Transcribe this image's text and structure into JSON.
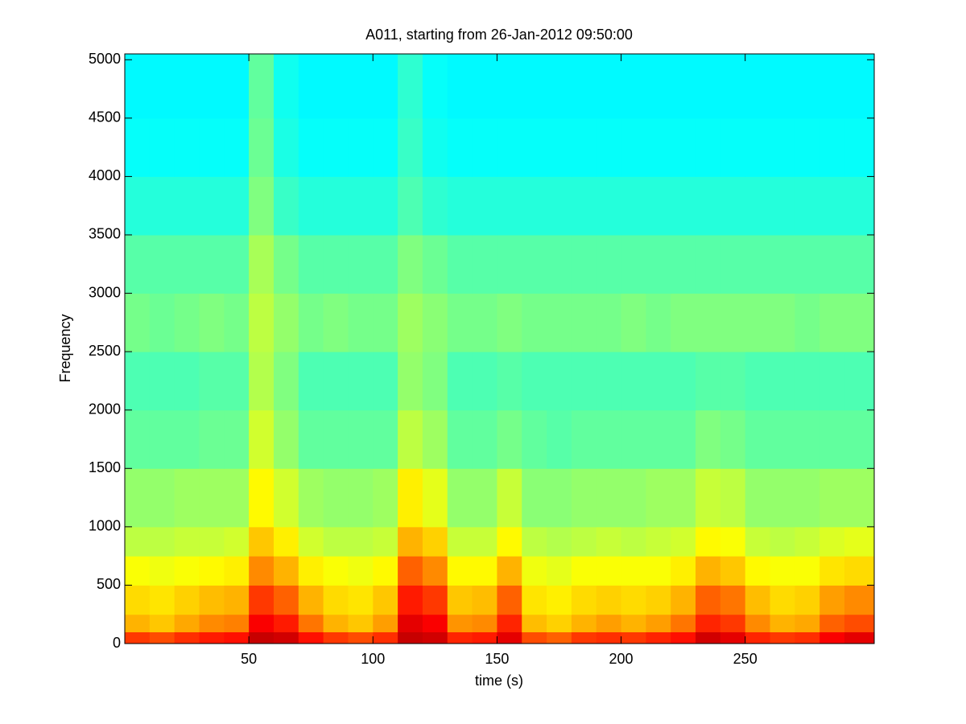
{
  "chart_data": {
    "type": "heatmap",
    "title": "A011, starting from 26-Jan-2012 09:50:00",
    "x_label": "time (s)",
    "y_label": "Frequency",
    "colormap": "jet",
    "zlim": [
      0,
      1
    ],
    "xlim": [
      0,
      302
    ],
    "ylim": [
      0,
      5050
    ],
    "xticks": [
      50,
      100,
      150,
      200,
      250
    ],
    "yticks": [
      0,
      500,
      1000,
      1500,
      2000,
      2500,
      3000,
      3500,
      4000,
      4500,
      5000
    ],
    "xbins": [
      0,
      10,
      20,
      30,
      40,
      50,
      60,
      70,
      80,
      90,
      100,
      110,
      120,
      130,
      140,
      150,
      160,
      170,
      180,
      190,
      200,
      210,
      220,
      230,
      240,
      250,
      260,
      270,
      280,
      290,
      302
    ],
    "ybins": [
      0,
      100,
      250,
      500,
      750,
      1000,
      1500,
      2000,
      2500,
      3000,
      3500,
      4000,
      4500,
      5050
    ],
    "z": [
      [
        0.82,
        0.8,
        0.83,
        0.85,
        0.86,
        0.93,
        0.92,
        0.86,
        0.82,
        0.8,
        0.83,
        0.93,
        0.92,
        0.84,
        0.85,
        0.9,
        0.8,
        0.78,
        0.82,
        0.83,
        0.82,
        0.84,
        0.86,
        0.92,
        0.9,
        0.84,
        0.82,
        0.83,
        0.88,
        0.9
      ],
      [
        0.7,
        0.68,
        0.71,
        0.74,
        0.75,
        0.88,
        0.85,
        0.76,
        0.7,
        0.68,
        0.72,
        0.9,
        0.88,
        0.73,
        0.74,
        0.84,
        0.69,
        0.67,
        0.7,
        0.72,
        0.7,
        0.72,
        0.76,
        0.84,
        0.82,
        0.74,
        0.7,
        0.71,
        0.78,
        0.8
      ],
      [
        0.66,
        0.65,
        0.67,
        0.69,
        0.7,
        0.82,
        0.78,
        0.7,
        0.66,
        0.65,
        0.68,
        0.85,
        0.82,
        0.68,
        0.69,
        0.78,
        0.65,
        0.64,
        0.66,
        0.67,
        0.66,
        0.67,
        0.7,
        0.78,
        0.76,
        0.69,
        0.66,
        0.67,
        0.72,
        0.74
      ],
      [
        0.62,
        0.61,
        0.62,
        0.63,
        0.64,
        0.74,
        0.7,
        0.64,
        0.62,
        0.61,
        0.63,
        0.78,
        0.74,
        0.63,
        0.63,
        0.7,
        0.61,
        0.6,
        0.62,
        0.62,
        0.62,
        0.62,
        0.64,
        0.7,
        0.68,
        0.63,
        0.62,
        0.62,
        0.65,
        0.66
      ],
      [
        0.56,
        0.56,
        0.57,
        0.57,
        0.58,
        0.68,
        0.64,
        0.58,
        0.56,
        0.56,
        0.57,
        0.7,
        0.67,
        0.57,
        0.57,
        0.63,
        0.56,
        0.55,
        0.56,
        0.57,
        0.56,
        0.57,
        0.58,
        0.63,
        0.62,
        0.57,
        0.56,
        0.57,
        0.59,
        0.6
      ],
      [
        0.52,
        0.52,
        0.53,
        0.53,
        0.53,
        0.63,
        0.58,
        0.53,
        0.52,
        0.52,
        0.53,
        0.64,
        0.6,
        0.52,
        0.52,
        0.57,
        0.51,
        0.51,
        0.52,
        0.52,
        0.52,
        0.53,
        0.53,
        0.57,
        0.56,
        0.52,
        0.52,
        0.52,
        0.53,
        0.53
      ],
      [
        0.47,
        0.47,
        0.47,
        0.48,
        0.48,
        0.58,
        0.52,
        0.47,
        0.47,
        0.47,
        0.47,
        0.56,
        0.53,
        0.47,
        0.47,
        0.49,
        0.47,
        0.46,
        0.47,
        0.47,
        0.47,
        0.47,
        0.47,
        0.5,
        0.49,
        0.47,
        0.47,
        0.47,
        0.47,
        0.47
      ],
      [
        0.45,
        0.45,
        0.45,
        0.46,
        0.46,
        0.55,
        0.5,
        0.45,
        0.45,
        0.45,
        0.45,
        0.52,
        0.5,
        0.45,
        0.45,
        0.46,
        0.45,
        0.45,
        0.45,
        0.45,
        0.45,
        0.45,
        0.45,
        0.46,
        0.46,
        0.45,
        0.45,
        0.45,
        0.45,
        0.45
      ],
      [
        0.49,
        0.48,
        0.49,
        0.5,
        0.49,
        0.56,
        0.52,
        0.49,
        0.5,
        0.49,
        0.49,
        0.53,
        0.51,
        0.49,
        0.49,
        0.5,
        0.49,
        0.49,
        0.49,
        0.49,
        0.5,
        0.49,
        0.5,
        0.5,
        0.5,
        0.5,
        0.5,
        0.49,
        0.5,
        0.5
      ],
      [
        0.46,
        0.46,
        0.46,
        0.46,
        0.46,
        0.54,
        0.49,
        0.46,
        0.46,
        0.46,
        0.46,
        0.5,
        0.48,
        0.46,
        0.46,
        0.46,
        0.46,
        0.46,
        0.46,
        0.46,
        0.46,
        0.46,
        0.46,
        0.46,
        0.46,
        0.46,
        0.46,
        0.46,
        0.46,
        0.46
      ],
      [
        0.41,
        0.41,
        0.41,
        0.41,
        0.41,
        0.5,
        0.43,
        0.41,
        0.41,
        0.41,
        0.41,
        0.45,
        0.42,
        0.41,
        0.41,
        0.41,
        0.41,
        0.41,
        0.41,
        0.41,
        0.41,
        0.41,
        0.41,
        0.41,
        0.41,
        0.41,
        0.41,
        0.41,
        0.41,
        0.41
      ],
      [
        0.38,
        0.38,
        0.38,
        0.38,
        0.38,
        0.48,
        0.4,
        0.38,
        0.38,
        0.38,
        0.38,
        0.43,
        0.39,
        0.38,
        0.38,
        0.38,
        0.38,
        0.38,
        0.38,
        0.38,
        0.38,
        0.38,
        0.38,
        0.38,
        0.38,
        0.38,
        0.38,
        0.38,
        0.38,
        0.38
      ],
      [
        0.37,
        0.37,
        0.37,
        0.37,
        0.37,
        0.47,
        0.39,
        0.37,
        0.37,
        0.37,
        0.37,
        0.42,
        0.38,
        0.37,
        0.37,
        0.37,
        0.37,
        0.37,
        0.37,
        0.37,
        0.37,
        0.37,
        0.37,
        0.37,
        0.37,
        0.37,
        0.37,
        0.37,
        0.37,
        0.37
      ]
    ]
  }
}
